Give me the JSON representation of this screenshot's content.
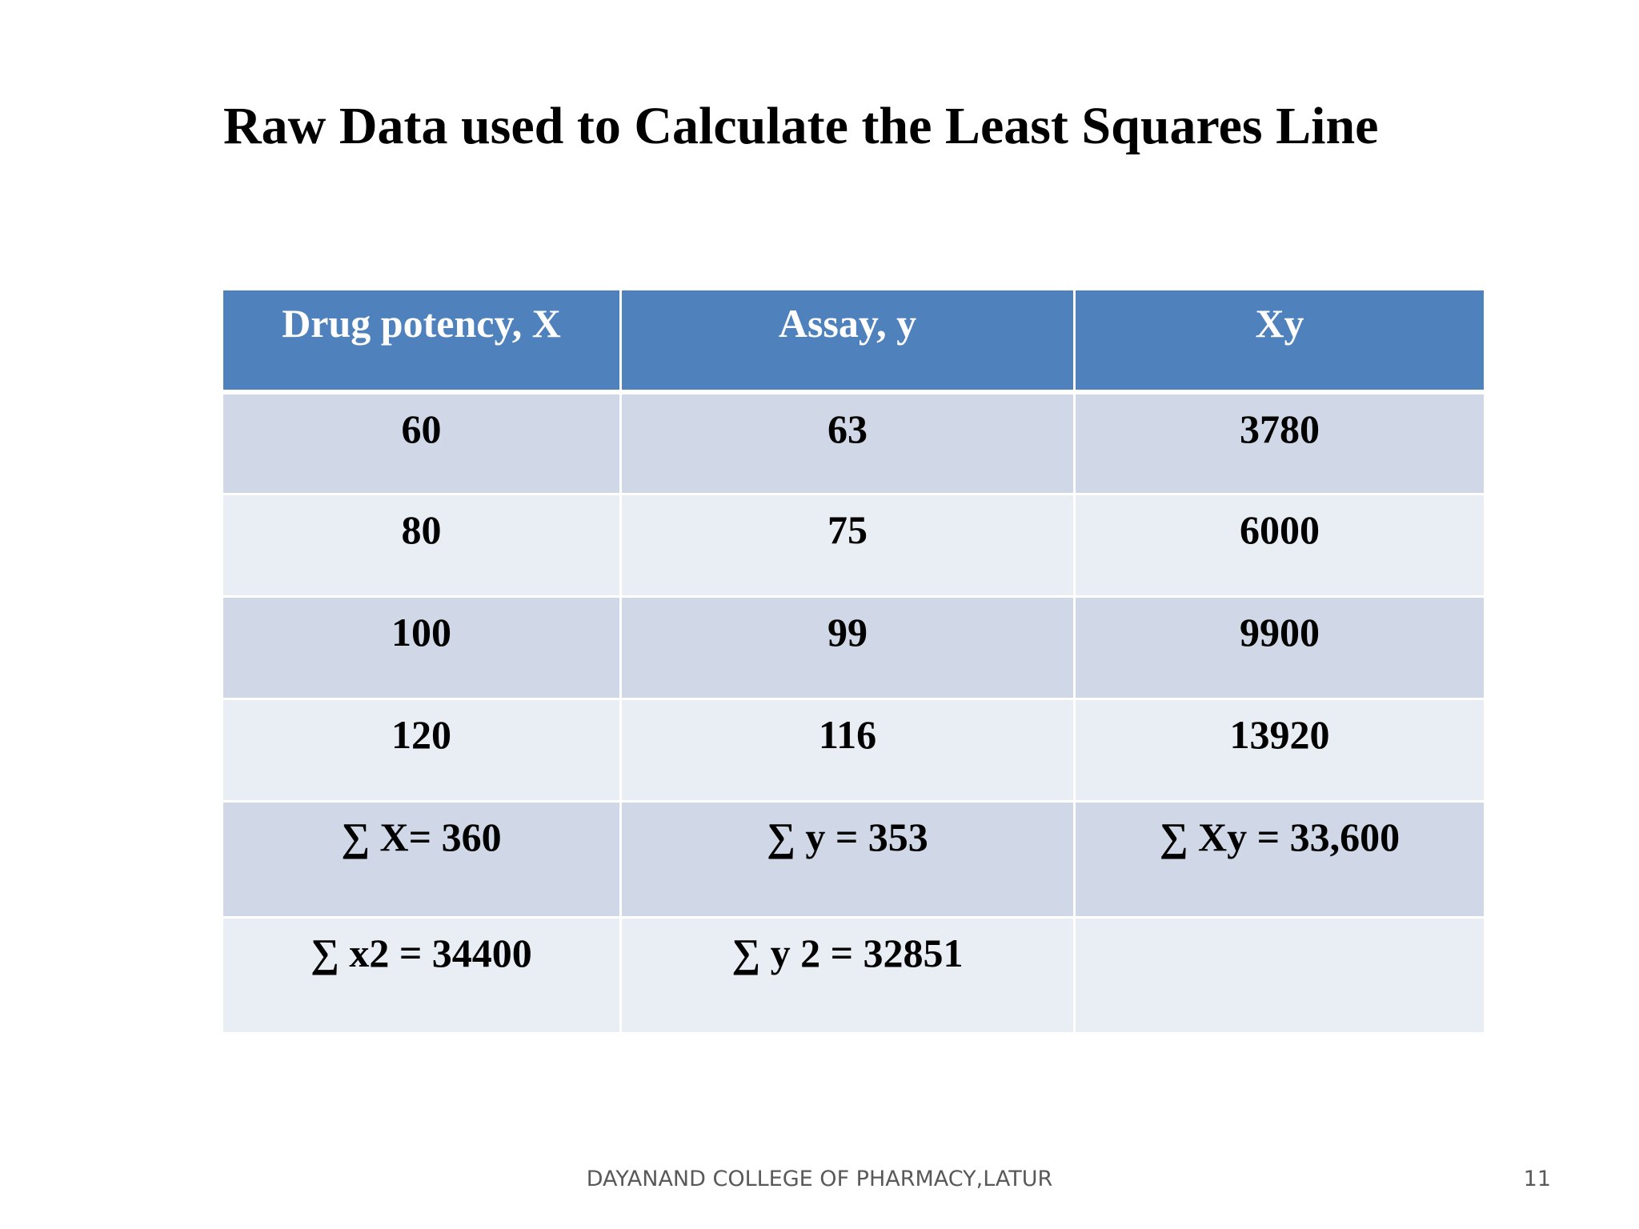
{
  "slide": {
    "title": "Raw Data used to Calculate the Least Squares Line",
    "footer": "DAYANAND COLLEGE OF PHARMACY,LATUR",
    "page_number": "11"
  },
  "colors": {
    "header_bg": "#4f81bd",
    "row_dark": "#d0d8e8",
    "row_light": "#e9edf4"
  },
  "table": {
    "headers": [
      "Drug potency, X",
      "Assay, y",
      "Xy"
    ],
    "rows": [
      [
        "60",
        "63",
        "3780"
      ],
      [
        "80",
        "75",
        "6000"
      ],
      [
        "100",
        "99",
        "9900"
      ],
      [
        "120",
        "116",
        "13920"
      ],
      [
        "∑ X= 360",
        "∑ y = 353",
        "∑ Xy = 33,600"
      ],
      [
        "∑ x2 = 34400",
        "∑ y 2 = 32851",
        ""
      ]
    ]
  }
}
